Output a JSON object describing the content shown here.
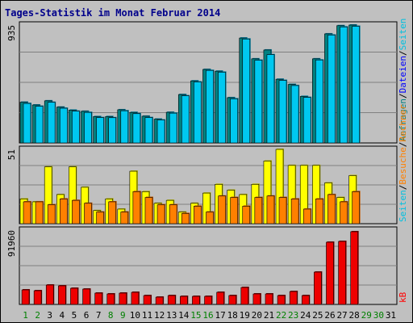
{
  "colors": {
    "frame_bg": "#c0c0c0",
    "panel_bg": "#c0c0c0",
    "title": "#00008b",
    "hits": "#008080",
    "files": "#0000ff",
    "files_bar": "#00c8f0",
    "files_bar_back": "#007898",
    "pages": "#00c0e0",
    "pages_bar": "#ffff00",
    "pages_bar_back": "#b0b000",
    "visits": "#ff8000",
    "visits_bar": "#ff8000",
    "visits_bar_back": "#c05800",
    "kb": "#ff0000",
    "kb_bar": "#ee0000",
    "kb_bar_back": "#800000",
    "weekday_label": "#000000",
    "weekend_label": "#008000",
    "axis_text": "#000000"
  },
  "chart_data": {
    "type": "bar",
    "title": "Tages-Statistik im Monat Februar 2014",
    "days": [
      1,
      2,
      3,
      4,
      5,
      6,
      7,
      8,
      9,
      10,
      11,
      12,
      13,
      14,
      15,
      16,
      17,
      18,
      19,
      20,
      21,
      22,
      23,
      24,
      25,
      26,
      27,
      28,
      29,
      30,
      31
    ],
    "weekend_days": [
      1,
      2,
      8,
      9,
      15,
      16,
      22,
      23,
      29,
      30
    ],
    "panels": [
      {
        "id": "hits-files",
        "axis_max_label": "935",
        "axis_max": 935,
        "right_labels": [
          {
            "text": "Anfragen",
            "role": "hits"
          },
          {
            "text": "/",
            "role": "sep"
          },
          {
            "text": "Dateien",
            "role": "files"
          },
          {
            "text": "/",
            "role": "sep"
          },
          {
            "text": "Seiten",
            "role": "pages"
          }
        ],
        "series": [
          {
            "role": "hits",
            "values": [
              323,
              301,
              334,
              284,
              260,
              251,
              209,
              209,
              263,
              242,
              212,
              189,
              243,
              384,
              492,
              583,
              569,
              359,
              832,
              667,
              737,
              505,
              464,
              369,
              667,
              865,
              930,
              935
            ]
          },
          {
            "role": "files",
            "values": [
              313,
              291,
              322,
              275,
              252,
              242,
              201,
              200,
              255,
              232,
              201,
              182,
              236,
              374,
              484,
              575,
              561,
              350,
              824,
              656,
              700,
              496,
              455,
              361,
              658,
              856,
              920,
              925
            ]
          }
        ]
      },
      {
        "id": "pages-visits",
        "axis_max_label": "51",
        "axis_max": 51,
        "right_labels": [
          {
            "text": "Seiten",
            "role": "pages"
          },
          {
            "text": "/",
            "role": "sep"
          },
          {
            "text": "Besuche",
            "role": "visits"
          },
          {
            "text": "/",
            "role": "sep"
          },
          {
            "text": "Rechner",
            "role": "visits"
          }
        ],
        "series": [
          {
            "role": "pages",
            "values": [
              17,
              15,
              39,
              20,
              39,
              25,
              9,
              17,
              10,
              36,
              22,
              14,
              16,
              8,
              14,
              21,
              27,
              23,
              20,
              27,
              43,
              51,
              40,
              40,
              40,
              28,
              18,
              33
            ]
          },
          {
            "role": "visits",
            "values": [
              15,
              15,
              13,
              17,
              16,
              14,
              8,
              15,
              8,
              22,
              18,
              13,
              13,
              7,
              12,
              8,
              19,
              18,
              12,
              18,
              19,
              18,
              17,
              10,
              17,
              20,
              15,
              22
            ]
          }
        ]
      },
      {
        "id": "kb",
        "axis_max_label": "91960",
        "axis_max": 91960,
        "right_labels": [
          {
            "text": "kB",
            "role": "kb"
          }
        ],
        "series": [
          {
            "role": "kb",
            "values": [
              18000,
              17000,
              24000,
              23000,
              20000,
              19000,
              14000,
              13000,
              14000,
              15000,
              11000,
              9000,
              11000,
              10000,
              10000,
              10000,
              15000,
              11000,
              21000,
              13000,
              13000,
              11000,
              16000,
              11000,
              40000,
              77000,
              78000,
              90000
            ]
          }
        ]
      }
    ]
  }
}
